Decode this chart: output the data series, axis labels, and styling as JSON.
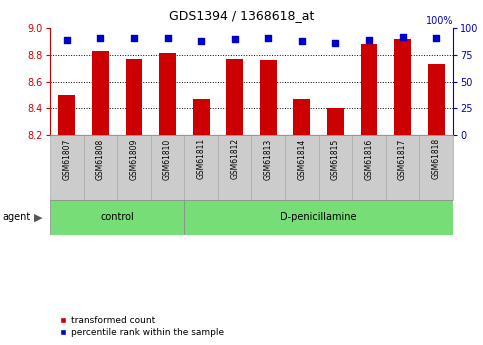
{
  "title": "GDS1394 / 1368618_at",
  "samples": [
    "GSM61807",
    "GSM61808",
    "GSM61809",
    "GSM61810",
    "GSM61811",
    "GSM61812",
    "GSM61813",
    "GSM61814",
    "GSM61815",
    "GSM61816",
    "GSM61817",
    "GSM61818"
  ],
  "transformed_count": [
    8.5,
    8.83,
    8.77,
    8.81,
    8.47,
    8.77,
    8.76,
    8.47,
    8.4,
    8.88,
    8.92,
    8.73
  ],
  "percentile_rank": [
    89,
    91,
    91,
    91,
    88,
    90,
    91,
    88,
    86,
    89,
    92,
    91
  ],
  "ylim_left": [
    8.2,
    9.0
  ],
  "ylim_right": [
    0,
    100
  ],
  "yticks_left": [
    8.2,
    8.4,
    8.6,
    8.8,
    9.0
  ],
  "yticks_right": [
    0,
    25,
    50,
    75,
    100
  ],
  "bar_color": "#cc0000",
  "dot_color": "#0000cc",
  "bar_bottom": 8.2,
  "control_samples": 4,
  "control_label": "control",
  "treatment_label": "D-penicillamine",
  "agent_label": "agent",
  "legend_bar": "transformed count",
  "legend_dot": "percentile rank within the sample",
  "tick_label_bg": "#cccccc",
  "group_bg": "#77dd77",
  "axis_left_color": "#cc0000",
  "axis_right_color": "#0000cc",
  "grid_lines": [
    8.4,
    8.6,
    8.8
  ],
  "bar_width": 0.5
}
